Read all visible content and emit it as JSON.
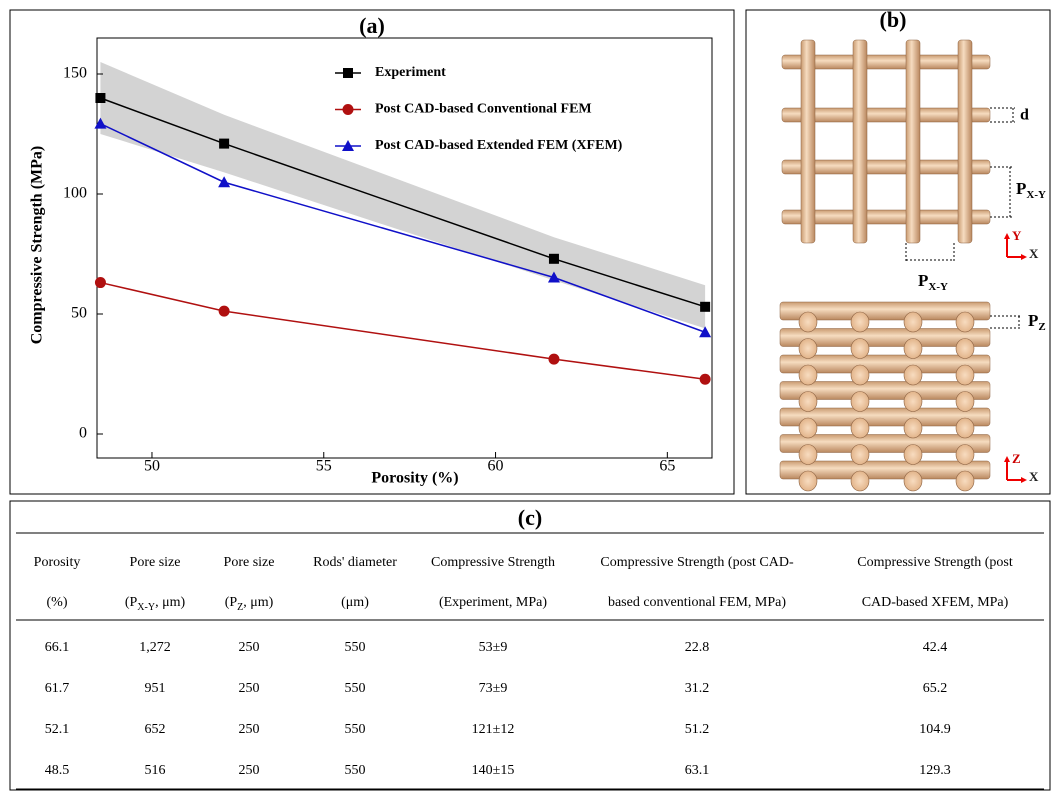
{
  "chart_data": {
    "type": "line",
    "title": "(a)",
    "x_label": "Porosity (%)",
    "y_label": "Compressive Strength (MPa)",
    "x": [
      48.5,
      52.1,
      61.7,
      66.1
    ],
    "series": [
      {
        "name": "Experiment",
        "color": "#000000",
        "marker": "square",
        "values": [
          140,
          121,
          73,
          53
        ],
        "errors": [
          15,
          12,
          9,
          9
        ],
        "band_color": "#d3d3d3"
      },
      {
        "name": "Post CAD-based Conventional FEM",
        "color": "#b01010",
        "marker": "circle",
        "values": [
          63.1,
          51.2,
          31.2,
          22.8
        ]
      },
      {
        "name": "Post CAD-based Extended FEM (XFEM)",
        "color": "#1010c8",
        "marker": "triangle",
        "values": [
          129.3,
          104.9,
          65.2,
          42.4
        ]
      }
    ],
    "xlim": [
      48.4,
      66.3
    ],
    "xticks": [
      50,
      55,
      60,
      65
    ],
    "ylim": [
      -10,
      165
    ],
    "yticks": [
      0,
      50,
      100,
      150
    ],
    "grid": false,
    "legend": "upper center"
  },
  "diagram": {
    "title": "(b)",
    "d": "d",
    "pxy_top": {
      "main": "P",
      "sub": "X-Y"
    },
    "pxy_bottom": {
      "main": "P",
      "sub": "X-Y"
    },
    "pz": {
      "main": "P",
      "sub": "Z"
    },
    "axes_top": [
      "Y",
      "X"
    ],
    "axes_bottom": [
      "Z",
      "X"
    ]
  },
  "table": {
    "title": "(c)",
    "header": [
      [
        "Porosity",
        "Pore size",
        "Pore size",
        "Rods' diameter",
        "Compressive Strength",
        "Compressive Strength (post CAD-",
        "Compressive Strength (post"
      ],
      [
        "(%)",
        {
          "pre": "(P",
          "sub": "X-Y",
          "post": ", μm)"
        },
        {
          "pre": "(P",
          "sub": "Z",
          "post": ", μm)"
        },
        "(μm)",
        "(Experiment, MPa)",
        "based conventional FEM, MPa)",
        "CAD-based XFEM, MPa)"
      ]
    ],
    "rows": [
      [
        "66.1",
        "1,272",
        "250",
        "550",
        "53±9",
        "22.8",
        "42.4"
      ],
      [
        "61.7",
        "951",
        "250",
        "550",
        "73±9",
        "31.2",
        "65.2"
      ],
      [
        "52.1",
        "652",
        "250",
        "550",
        "121±12",
        "51.2",
        "104.9"
      ],
      [
        "48.5",
        "516",
        "250",
        "550",
        "140±15",
        "63.1",
        "129.3"
      ]
    ]
  }
}
